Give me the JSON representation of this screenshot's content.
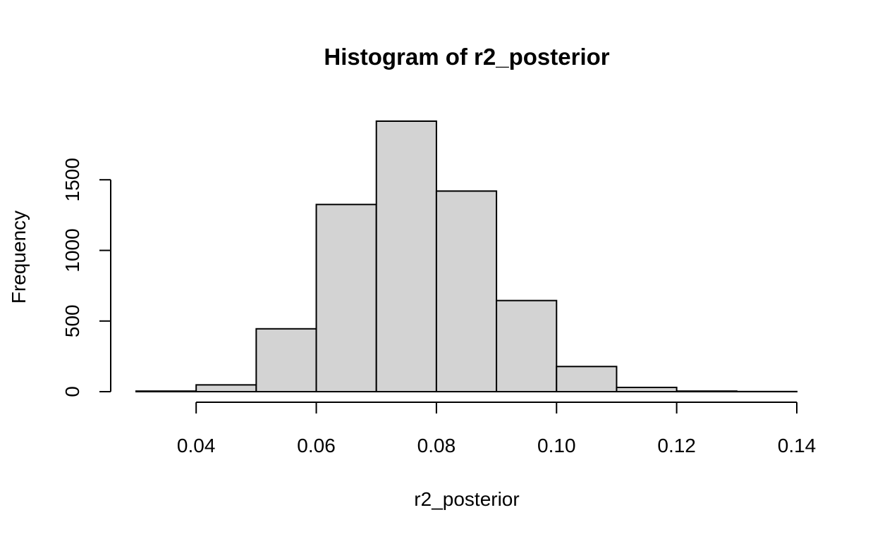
{
  "chart_data": {
    "type": "bar",
    "title": "Histogram of r2_posterior",
    "xlabel": "r2_posterior",
    "ylabel": "Frequency",
    "bin_edges": [
      0.03,
      0.04,
      0.05,
      0.06,
      0.07,
      0.08,
      0.09,
      0.1,
      0.11,
      0.12,
      0.13,
      0.14
    ],
    "values": [
      4,
      48,
      445,
      1325,
      1915,
      1420,
      645,
      178,
      30,
      4,
      1
    ],
    "xlim": [
      0.03,
      0.14
    ],
    "ylim": [
      0,
      1915
    ],
    "x_ticks": [
      0.04,
      0.06,
      0.08,
      0.1,
      0.12,
      0.14
    ],
    "x_tick_labels": [
      "0.04",
      "0.06",
      "0.08",
      "0.10",
      "0.12",
      "0.14"
    ],
    "y_ticks": [
      0,
      500,
      1000,
      1500
    ],
    "y_tick_labels": [
      "0",
      "500",
      "1000",
      "1500"
    ],
    "bar_color": "#d3d3d3",
    "edge_color": "#000000",
    "grid": false,
    "legend": "none"
  }
}
